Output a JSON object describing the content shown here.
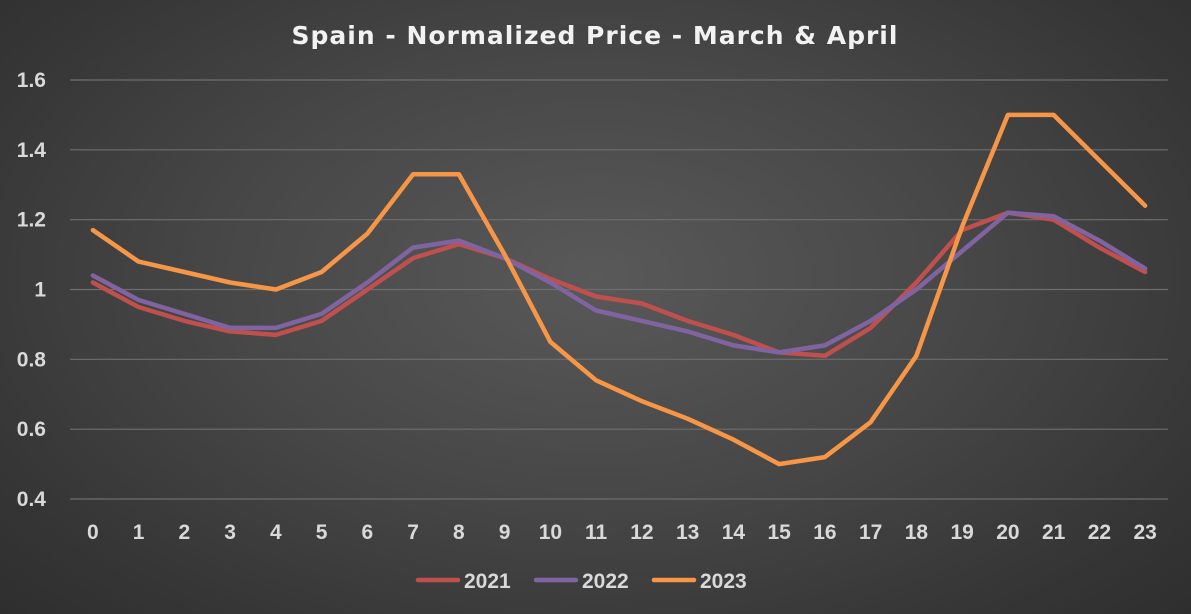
{
  "chart_data": {
    "type": "line",
    "title": "Spain - Normalized Price - March & April",
    "xlabel": "",
    "ylabel": "",
    "x": [
      0,
      1,
      2,
      3,
      4,
      5,
      6,
      7,
      8,
      9,
      10,
      11,
      12,
      13,
      14,
      15,
      16,
      17,
      18,
      19,
      20,
      21,
      22,
      23
    ],
    "x_tick_labels": [
      "0",
      "1",
      "2",
      "3",
      "4",
      "5",
      "6",
      "7",
      "8",
      "9",
      "10",
      "11",
      "12",
      "13",
      "14",
      "15",
      "16",
      "17",
      "18",
      "19",
      "20",
      "21",
      "22",
      "23"
    ],
    "ylim": [
      0.4,
      1.6
    ],
    "y_ticks": [
      0.4,
      0.6,
      0.8,
      1.0,
      1.2,
      1.4,
      1.6
    ],
    "y_tick_labels": [
      "0.4",
      "0.6",
      "0.8",
      "1",
      "1.2",
      "1.4",
      "1.6"
    ],
    "grid": true,
    "legend_position": "bottom",
    "series": [
      {
        "name": "2021",
        "color": "#c0504d",
        "values": [
          1.02,
          0.95,
          0.91,
          0.88,
          0.87,
          0.91,
          1.0,
          1.09,
          1.13,
          1.09,
          1.03,
          0.98,
          0.96,
          0.91,
          0.87,
          0.82,
          0.81,
          0.89,
          1.02,
          1.17,
          1.22,
          1.2,
          1.12,
          1.05
        ]
      },
      {
        "name": "2022",
        "color": "#8064a2",
        "values": [
          1.04,
          0.97,
          0.93,
          0.89,
          0.89,
          0.93,
          1.02,
          1.12,
          1.14,
          1.09,
          1.02,
          0.94,
          0.91,
          0.88,
          0.84,
          0.82,
          0.84,
          0.91,
          1.0,
          1.11,
          1.22,
          1.21,
          1.14,
          1.06
        ]
      },
      {
        "name": "2023",
        "color": "#f79646",
        "values": [
          1.17,
          1.08,
          1.05,
          1.02,
          1.0,
          1.05,
          1.16,
          1.33,
          1.33,
          1.1,
          0.85,
          0.74,
          0.68,
          0.63,
          0.57,
          0.5,
          0.52,
          0.62,
          0.81,
          1.18,
          1.5,
          1.5,
          1.37,
          1.24
        ]
      }
    ]
  }
}
